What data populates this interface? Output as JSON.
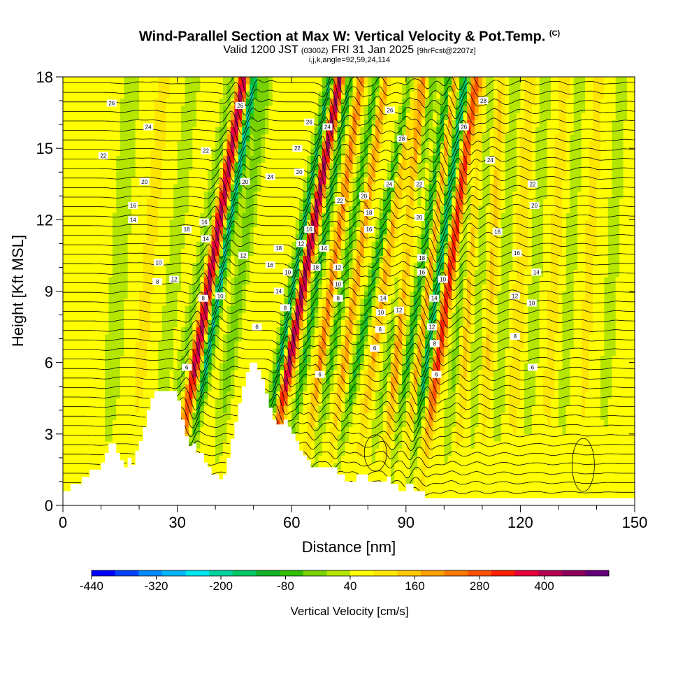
{
  "title": {
    "main": "Wind-Parallel Section at Max W: Vertical Velocity & Pot.Temp.",
    "main_mark": "(C)",
    "valid_prefix": "Valid 1200 JST",
    "valid_utc": "(0300Z)",
    "valid_date": "FRI 31 Jan 2025",
    "valid_fcst": "[9hrFcst@2207z]",
    "params": "i,j,k,angle=92,59,24,114"
  },
  "chart_data": {
    "type": "heatmap",
    "xlabel": "Distance [nm]",
    "ylabel": "Height [Kft MSL]",
    "xlim": [
      0,
      150
    ],
    "ylim": [
      0,
      18
    ],
    "x_ticks": [
      0,
      30,
      60,
      90,
      120,
      150
    ],
    "y_ticks": [
      0,
      3,
      6,
      9,
      12,
      15,
      18
    ],
    "colorbar": {
      "label": "Vertical Velocity [cm/s]",
      "tick_labels": [
        "-440",
        "-320",
        "-200",
        "-80",
        "40",
        "160",
        "280",
        "400"
      ],
      "tick_values": [
        -440,
        -320,
        -200,
        -80,
        40,
        160,
        280,
        400
      ],
      "range": [
        -440,
        520
      ],
      "step": 40,
      "colors": [
        "#0000ff",
        "#0044ff",
        "#0088ff",
        "#00b4ff",
        "#00e6f0",
        "#00d2a0",
        "#00c864",
        "#14b428",
        "#32be00",
        "#78d200",
        "#b4e600",
        "#ffff00",
        "#ffe600",
        "#ffc800",
        "#ffa000",
        "#ff7800",
        "#ff5000",
        "#ff1e00",
        "#e6003c",
        "#b40050",
        "#8c005a",
        "#640078"
      ]
    },
    "theta_label_values": [
      "26",
      "24",
      "22",
      "20",
      "18",
      "16",
      "14",
      "12",
      "10",
      "8",
      "6"
    ],
    "contour_labels": [
      {
        "x": 12.8,
        "y": 16.9,
        "v": "26"
      },
      {
        "x": 22.4,
        "y": 15.9,
        "v": "24"
      },
      {
        "x": 10.6,
        "y": 14.7,
        "v": "22"
      },
      {
        "x": 21.4,
        "y": 13.6,
        "v": "20"
      },
      {
        "x": 18.4,
        "y": 12.6,
        "v": "16"
      },
      {
        "x": 18.4,
        "y": 12.0,
        "v": "14"
      },
      {
        "x": 25.1,
        "y": 10.2,
        "v": "10"
      },
      {
        "x": 24.8,
        "y": 9.4,
        "v": "8"
      },
      {
        "x": 29.2,
        "y": 9.5,
        "v": "12"
      },
      {
        "x": 32.5,
        "y": 11.6,
        "v": "18"
      },
      {
        "x": 37.5,
        "y": 14.9,
        "v": "22"
      },
      {
        "x": 37.1,
        "y": 11.9,
        "v": "16"
      },
      {
        "x": 37.5,
        "y": 11.2,
        "v": "14"
      },
      {
        "x": 36.8,
        "y": 8.7,
        "v": "8"
      },
      {
        "x": 41.3,
        "y": 8.8,
        "v": "10"
      },
      {
        "x": 32.5,
        "y": 5.8,
        "v": "6"
      },
      {
        "x": 46.5,
        "y": 16.8,
        "v": "26"
      },
      {
        "x": 47.8,
        "y": 13.6,
        "v": "20"
      },
      {
        "x": 47.3,
        "y": 10.5,
        "v": "12"
      },
      {
        "x": 54.4,
        "y": 13.8,
        "v": "24"
      },
      {
        "x": 54.4,
        "y": 10.1,
        "v": "16"
      },
      {
        "x": 56.6,
        "y": 10.8,
        "v": "18"
      },
      {
        "x": 56.6,
        "y": 9.0,
        "v": "14"
      },
      {
        "x": 58.3,
        "y": 8.3,
        "v": "8"
      },
      {
        "x": 59.0,
        "y": 9.8,
        "v": "10"
      },
      {
        "x": 50.9,
        "y": 7.5,
        "v": "6"
      },
      {
        "x": 61.5,
        "y": 15.0,
        "v": "22"
      },
      {
        "x": 62.0,
        "y": 14.0,
        "v": "20"
      },
      {
        "x": 62.5,
        "y": 11.0,
        "v": "12"
      },
      {
        "x": 64.6,
        "y": 11.6,
        "v": "16"
      },
      {
        "x": 64.6,
        "y": 16.1,
        "v": "26"
      },
      {
        "x": 69.4,
        "y": 15.9,
        "v": "24"
      },
      {
        "x": 66.3,
        "y": 10.0,
        "v": "18"
      },
      {
        "x": 68.5,
        "y": 10.8,
        "v": "14"
      },
      {
        "x": 67.4,
        "y": 5.5,
        "v": "6"
      },
      {
        "x": 72.7,
        "y": 12.8,
        "v": "22"
      },
      {
        "x": 72.2,
        "y": 10.0,
        "v": "12"
      },
      {
        "x": 72.2,
        "y": 9.3,
        "v": "10"
      },
      {
        "x": 72.2,
        "y": 8.7,
        "v": "8"
      },
      {
        "x": 79.0,
        "y": 13.0,
        "v": "20"
      },
      {
        "x": 80.3,
        "y": 12.3,
        "v": "18"
      },
      {
        "x": 80.3,
        "y": 11.6,
        "v": "16"
      },
      {
        "x": 84.0,
        "y": 8.7,
        "v": "14"
      },
      {
        "x": 83.4,
        "y": 8.1,
        "v": "10"
      },
      {
        "x": 83.2,
        "y": 7.4,
        "v": "6"
      },
      {
        "x": 81.8,
        "y": 6.6,
        "v": "6"
      },
      {
        "x": 85.8,
        "y": 16.6,
        "v": "26"
      },
      {
        "x": 85.6,
        "y": 13.5,
        "v": "24"
      },
      {
        "x": 88.9,
        "y": 15.4,
        "v": "28"
      },
      {
        "x": 88.2,
        "y": 8.2,
        "v": "12"
      },
      {
        "x": 93.5,
        "y": 13.5,
        "v": "22"
      },
      {
        "x": 93.5,
        "y": 12.1,
        "v": "20"
      },
      {
        "x": 94.2,
        "y": 10.4,
        "v": "18"
      },
      {
        "x": 94.2,
        "y": 9.8,
        "v": "16"
      },
      {
        "x": 97.4,
        "y": 8.7,
        "v": "14"
      },
      {
        "x": 99.7,
        "y": 9.5,
        "v": "10"
      },
      {
        "x": 96.8,
        "y": 7.5,
        "v": "12"
      },
      {
        "x": 97.5,
        "y": 6.8,
        "v": "8"
      },
      {
        "x": 98.0,
        "y": 5.5,
        "v": "6"
      },
      {
        "x": 110.3,
        "y": 17.0,
        "v": "28"
      },
      {
        "x": 105.2,
        "y": 15.9,
        "v": "26"
      },
      {
        "x": 112.1,
        "y": 14.5,
        "v": "24"
      },
      {
        "x": 123.2,
        "y": 13.5,
        "v": "22"
      },
      {
        "x": 123.7,
        "y": 12.6,
        "v": "20"
      },
      {
        "x": 114.0,
        "y": 11.5,
        "v": "16"
      },
      {
        "x": 119.1,
        "y": 10.6,
        "v": "16"
      },
      {
        "x": 124.2,
        "y": 9.8,
        "v": "14"
      },
      {
        "x": 118.6,
        "y": 8.8,
        "v": "12"
      },
      {
        "x": 123.0,
        "y": 8.5,
        "v": "10"
      },
      {
        "x": 118.6,
        "y": 7.1,
        "v": "8"
      },
      {
        "x": 123.2,
        "y": 5.8,
        "v": "6"
      }
    ]
  }
}
